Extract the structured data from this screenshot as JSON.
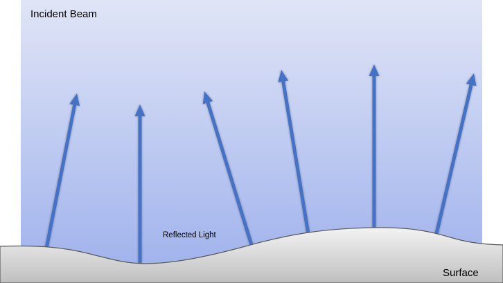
{
  "labels": {
    "incident_beam": "Incident Beam",
    "reflected_light": "Reflected Light",
    "surface": "Surface"
  },
  "colors": {
    "background_top": "#e0e5f6",
    "background_bottom": "#9db0ec",
    "arrow": "#4472c4",
    "surface_top": "#f3f3f3",
    "surface_bottom": "#bfbfbf",
    "surface_outline": "#595959"
  },
  "arrows": [
    {
      "name": "reflected-ray-1"
    },
    {
      "name": "reflected-ray-2"
    },
    {
      "name": "reflected-ray-3"
    },
    {
      "name": "reflected-ray-4"
    },
    {
      "name": "reflected-ray-5"
    },
    {
      "name": "reflected-ray-6"
    }
  ]
}
